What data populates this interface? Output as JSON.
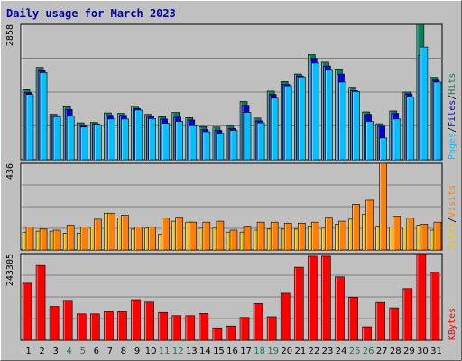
{
  "chart_data": {
    "type": "bar",
    "title": "Daily usage for March 2023",
    "days": [
      "1",
      "2",
      "3",
      "4",
      "5",
      "6",
      "7",
      "8",
      "9",
      "10",
      "11",
      "12",
      "13",
      "14",
      "15",
      "16",
      "17",
      "18",
      "19",
      "20",
      "21",
      "22",
      "23",
      "24",
      "25",
      "26",
      "27",
      "28",
      "29",
      "30",
      "31"
    ],
    "weekend_days": [
      "4",
      "5",
      "11",
      "12",
      "18",
      "19",
      "25",
      "26"
    ],
    "panels": [
      {
        "id": "pages-files-hits",
        "ymax_label": "2858",
        "ylim": [
          0,
          2858
        ],
        "legend": [
          {
            "text": "Pages",
            "color": "#00c0ff"
          },
          {
            "text": "/",
            "color": "#000000"
          },
          {
            "text": "Files",
            "color": "#0000d0"
          },
          {
            "text": "/",
            "color": "#000000"
          },
          {
            "text": "Hits",
            "color": "#00805c"
          }
        ],
        "series": [
          {
            "name": "Hits",
            "color": "#00805c",
            "values": [
              1480,
              1950,
              960,
              1120,
              780,
              790,
              990,
              980,
              1130,
              960,
              910,
              1000,
              890,
              700,
              690,
              710,
              1230,
              880,
              1450,
              1650,
              1810,
              2220,
              2060,
              1900,
              1530,
              1010,
              760,
              1030,
              1430,
              2860,
              1740
            ]
          },
          {
            "name": "Files",
            "color": "#0000d0",
            "values": [
              1420,
              1880,
              930,
              1060,
              730,
              760,
              940,
              940,
              1080,
              920,
              860,
              900,
              840,
              640,
              620,
              660,
              1150,
              820,
              1380,
              1590,
              1770,
              2140,
              1980,
              1810,
              1460,
              960,
              710,
              980,
              1390,
              2210,
              1680
            ]
          },
          {
            "name": "Pages",
            "color": "#00c0ff",
            "values": [
              1380,
              1840,
              910,
              920,
              690,
              740,
              860,
              860,
              1050,
              870,
              770,
              810,
              720,
              590,
              560,
              620,
              1000,
              780,
              1300,
              1560,
              1750,
              2040,
              1890,
              1640,
              1440,
              810,
              460,
              860,
              1330,
              2380,
              1640
            ]
          }
        ]
      },
      {
        "id": "sites-visits",
        "ymax_label": "436",
        "ylim": [
          0,
          436
        ],
        "legend": [
          {
            "text": "Sites",
            "color": "#f0c000"
          },
          {
            "text": "/",
            "color": "#000000"
          },
          {
            "text": "Visits",
            "color": "#ff8000"
          }
        ],
        "series": [
          {
            "name": "Sites",
            "color": "#f0c000",
            "values": [
              90,
              95,
              95,
              85,
              85,
              115,
              185,
              160,
              105,
              110,
              80,
              145,
              140,
              110,
              110,
              90,
              90,
              100,
              105,
              105,
              105,
              120,
              110,
              130,
              155,
              180,
              120,
              115,
              115,
              125,
              100
            ]
          },
          {
            "name": "Visits",
            "color": "#ff8000",
            "values": [
              115,
              105,
              100,
              125,
              115,
              155,
              185,
              175,
              115,
              115,
              160,
              165,
              140,
              140,
              145,
              100,
              120,
              140,
              140,
              135,
              135,
              140,
              165,
              145,
              230,
              250,
              436,
              170,
              160,
              130,
              140
            ]
          }
        ]
      },
      {
        "id": "kbytes",
        "ymax_label": "243305",
        "ylim": [
          0,
          243305
        ],
        "legend": [
          {
            "text": "KBytes",
            "color": "#ff0000"
          }
        ],
        "series": [
          {
            "name": "KBytes",
            "color": "#ff0000",
            "values": [
              160000,
              210000,
              95000,
              112000,
              74000,
              74000,
              80000,
              80000,
              114000,
              107000,
              78000,
              69000,
              69000,
              75000,
              35000,
              40000,
              64000,
              103000,
              66000,
              132000,
              205000,
              236000,
              236000,
              178000,
              121000,
              38000,
              106000,
              91000,
              145000,
              250000,
              191000
            ]
          }
        ]
      }
    ]
  }
}
